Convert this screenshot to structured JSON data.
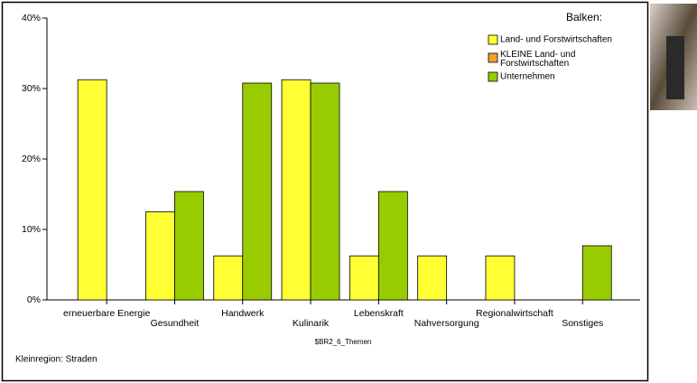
{
  "chart_data": {
    "type": "bar",
    "x_label": "$BR2_6_Themen",
    "footnote": "Kleinregion: Straden",
    "legend_title": "Balken:",
    "categories": [
      "erneuerbare Energie",
      "Gesundheit",
      "Handwerk",
      "Kulinarik",
      "Lebenskraft",
      "Nahversorgung",
      "Regionalwirtschaft",
      "Sonstiges"
    ],
    "series": [
      {
        "name": "Land- und Forstwirtschaften",
        "color": "#ffff33",
        "values": [
          31.25,
          12.5,
          6.25,
          31.25,
          6.25,
          6.25,
          6.25,
          0
        ]
      },
      {
        "name": "KLEINE Land- und Forstwirtschaften",
        "color": "#f0a030",
        "values": [
          null,
          null,
          null,
          null,
          null,
          null,
          null,
          null
        ]
      },
      {
        "name": "Unternehmen",
        "color": "#99cc00",
        "values": [
          0,
          15.38,
          30.77,
          30.77,
          15.38,
          0,
          0,
          7.69
        ]
      }
    ],
    "ylim": [
      0,
      40
    ],
    "yticks": [
      {
        "value": 0,
        "label": "0%"
      },
      {
        "value": 10,
        "label": "10%"
      },
      {
        "value": 20,
        "label": "20%"
      },
      {
        "value": 30,
        "label": "30%"
      },
      {
        "value": 40,
        "label": "40%"
      }
    ],
    "grid": false
  }
}
